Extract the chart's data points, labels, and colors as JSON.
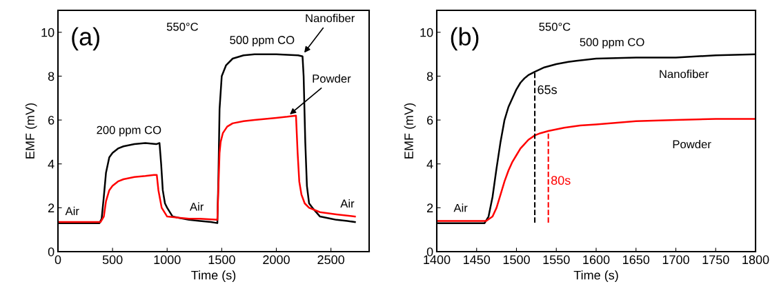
{
  "chart_data": [
    {
      "type": "line",
      "title": "(a)",
      "xlabel": "Time (s)",
      "ylabel": "EMF (mV)",
      "xlim": [
        0,
        2850
      ],
      "ylim": [
        0,
        11
      ],
      "xticks": [
        0,
        500,
        1000,
        1500,
        2000,
        2500
      ],
      "yticks": [
        0,
        2,
        4,
        6,
        8,
        10
      ],
      "grid": false,
      "legend": false,
      "series": [
        {
          "color": "#000000",
          "x": [
            0,
            200,
            380,
            400,
            420,
            440,
            470,
            500,
            550,
            600,
            700,
            800,
            900,
            930,
            945,
            960,
            980,
            1000,
            1050,
            1100,
            1200,
            1300,
            1400,
            1460,
            1470,
            1480,
            1500,
            1540,
            1600,
            1700,
            1800,
            2000,
            2200,
            2240,
            2250,
            2265,
            2280,
            2300,
            2330,
            2400,
            2500,
            2550,
            2650,
            2720
          ],
          "values": [
            1.3,
            1.3,
            1.3,
            1.5,
            2.5,
            3.6,
            4.3,
            4.5,
            4.7,
            4.8,
            4.9,
            4.95,
            4.9,
            4.95,
            4.0,
            2.8,
            2.2,
            2.0,
            1.6,
            1.55,
            1.45,
            1.4,
            1.35,
            1.3,
            3.5,
            6.5,
            8.0,
            8.5,
            8.8,
            8.95,
            9.0,
            9.0,
            8.95,
            8.9,
            8.0,
            5.0,
            3.0,
            2.2,
            2.0,
            1.6,
            1.5,
            1.45,
            1.4,
            1.35
          ]
        },
        {
          "color": "#ff0000",
          "x": [
            0,
            200,
            390,
            420,
            440,
            470,
            500,
            550,
            600,
            700,
            800,
            880,
            905,
            920,
            950,
            1000,
            1100,
            1200,
            1300,
            1460,
            1470,
            1480,
            1490,
            1510,
            1550,
            1600,
            1700,
            1800,
            2000,
            2100,
            2180,
            2195,
            2210,
            2230,
            2260,
            2300,
            2400,
            2550,
            2720
          ],
          "values": [
            1.35,
            1.35,
            1.35,
            1.6,
            2.3,
            2.8,
            3.0,
            3.2,
            3.3,
            3.4,
            3.45,
            3.5,
            3.5,
            2.8,
            2.0,
            1.6,
            1.55,
            1.5,
            1.5,
            1.45,
            3.0,
            4.5,
            5.0,
            5.4,
            5.7,
            5.85,
            5.95,
            6.0,
            6.1,
            6.15,
            6.2,
            4.5,
            3.2,
            2.6,
            2.2,
            2.0,
            1.8,
            1.7,
            1.6
          ]
        }
      ],
      "annotations": [
        "550°C",
        "Air",
        "200 ppm CO",
        "Air",
        "500 ppm CO",
        {
          "text": "Nanofiber",
          "x": 2245,
          "y": 9.0
        },
        {
          "text": "Powder",
          "x": 2110,
          "y": 6.2
        },
        "Air"
      ]
    },
    {
      "type": "line",
      "title": "(b)",
      "xlabel": "Time (s)",
      "ylabel": "EMF (mV)",
      "xlim": [
        1400,
        1800
      ],
      "ylim": [
        0,
        11
      ],
      "xticks": [
        1400,
        1450,
        1500,
        1550,
        1600,
        1650,
        1700,
        1750,
        1800
      ],
      "yticks": [
        0,
        2,
        4,
        6,
        8,
        10
      ],
      "grid": false,
      "legend": false,
      "series": [
        {
          "color": "#000000",
          "x": [
            1400,
            1430,
            1460,
            1465,
            1470,
            1475,
            1480,
            1485,
            1490,
            1495,
            1500,
            1505,
            1510,
            1515,
            1523,
            1535,
            1550,
            1565,
            1575,
            1600,
            1650,
            1700,
            1750,
            1800
          ],
          "values": [
            1.3,
            1.3,
            1.3,
            1.6,
            2.5,
            3.8,
            5.0,
            6.0,
            6.6,
            7.0,
            7.4,
            7.7,
            7.9,
            8.05,
            8.2,
            8.4,
            8.55,
            8.65,
            8.7,
            8.8,
            8.85,
            8.85,
            8.95,
            9.0
          ]
        },
        {
          "color": "#ff0000",
          "x": [
            1400,
            1430,
            1462,
            1470,
            1475,
            1480,
            1485,
            1490,
            1495,
            1500,
            1505,
            1510,
            1515,
            1523,
            1530,
            1540,
            1560,
            1580,
            1600,
            1650,
            1700,
            1750,
            1800
          ],
          "values": [
            1.4,
            1.4,
            1.4,
            1.6,
            2.0,
            2.6,
            3.2,
            3.7,
            4.1,
            4.4,
            4.7,
            4.9,
            5.1,
            5.3,
            5.4,
            5.5,
            5.65,
            5.75,
            5.8,
            5.95,
            6.0,
            6.05,
            6.05
          ]
        }
      ],
      "ref_lines": [
        {
          "axis": "x",
          "value": 1523,
          "label": "65s",
          "color": "#000000",
          "line_style": "dashed"
        },
        {
          "axis": "x",
          "value": 1540,
          "label": "80s",
          "color": "#ff0000",
          "line_style": "dashed"
        }
      ],
      "annotations": [
        "550°C",
        "500 ppm CO",
        "Nanofiber",
        "Powder",
        "Air"
      ]
    }
  ]
}
